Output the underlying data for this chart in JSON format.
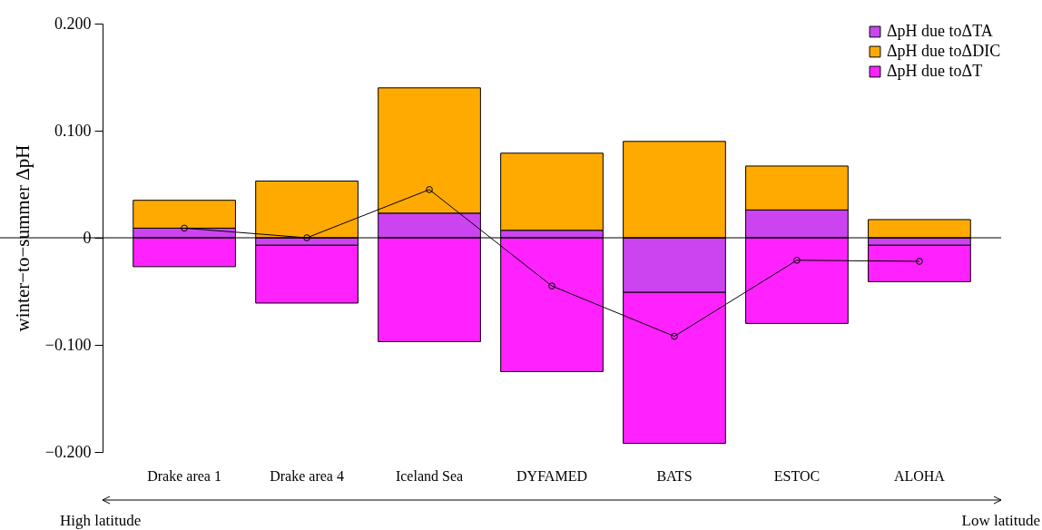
{
  "chart_data": {
    "type": "bar",
    "stacked": true,
    "ylabel": "winter−to−summer ΔpH",
    "categories": [
      "Drake area 1",
      "Drake area 4",
      "Iceland Sea",
      "DYFAMED",
      "BATS",
      "ESTOC",
      "ALOHA"
    ],
    "series": [
      {
        "name": "ΔpH due toΔTA",
        "color": "#cc44f0",
        "values": [
          0.009,
          -0.007,
          0.023,
          0.007,
          -0.051,
          0.026,
          -0.007
        ]
      },
      {
        "name": "ΔpH due toΔDIC",
        "color": "#ffaa00",
        "values": [
          0.026,
          0.053,
          0.117,
          0.072,
          0.09,
          0.041,
          0.017
        ]
      },
      {
        "name": "ΔpH due toΔT",
        "color": "#ff22ff",
        "values": [
          -0.027,
          -0.054,
          -0.097,
          -0.125,
          -0.141,
          -0.08,
          -0.034
        ]
      },
      {
        "type": "line",
        "color": "#000000",
        "marker": "circle",
        "values": [
          0.009,
          0.0,
          0.045,
          -0.045,
          -0.092,
          -0.021,
          -0.022
        ]
      }
    ],
    "ylim": [
      -0.2,
      0.2
    ],
    "yticks": [
      {
        "value": -0.2,
        "label": "−0.200"
      },
      {
        "value": -0.1,
        "label": "−0.100"
      },
      {
        "value": 0,
        "label": "0"
      },
      {
        "value": 0.1,
        "label": "0.100"
      },
      {
        "value": 0.2,
        "label": "0.200"
      }
    ],
    "ref_lines": [
      {
        "axis": "y",
        "value": 0,
        "color": "#000000"
      }
    ],
    "legend": "top right",
    "annotations": [
      "High latitude",
      "Low latitude"
    ]
  }
}
